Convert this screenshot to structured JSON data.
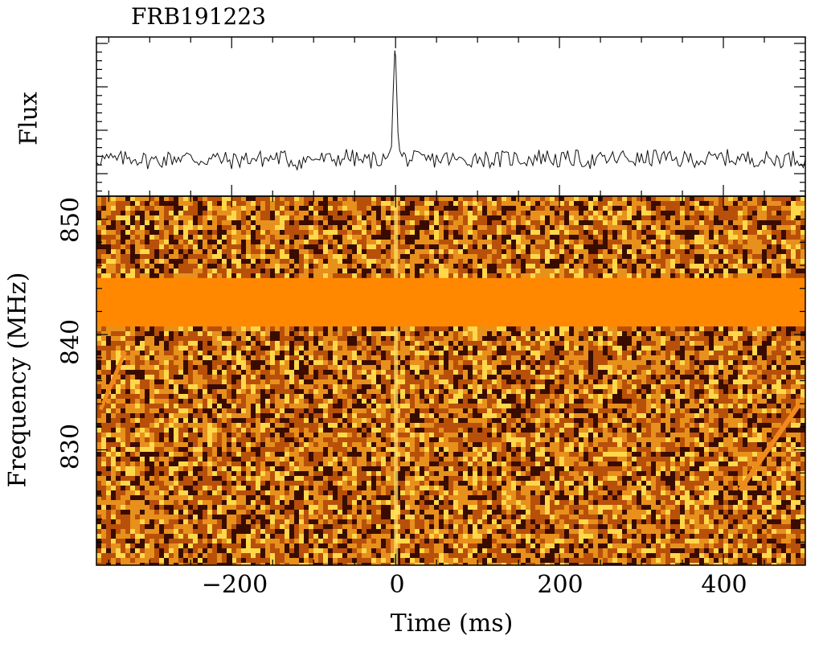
{
  "chart_data": [
    {
      "type": "line",
      "title": "FRB191223",
      "ylabel": "Flux",
      "xlim": [
        -365,
        500
      ],
      "series": [
        {
          "x": [
            -365,
            -340,
            -320,
            -300,
            -280,
            -260,
            -240,
            -220,
            -200,
            -180,
            -160,
            -140,
            -120,
            -100,
            -80,
            -60,
            -40,
            -20,
            -10,
            -5,
            -3,
            -1,
            0,
            1,
            3,
            5,
            8,
            12,
            20,
            40,
            60,
            80,
            100,
            120,
            140,
            160,
            180,
            200,
            220,
            240,
            260,
            280,
            300,
            320,
            340,
            360,
            380,
            400,
            420,
            440,
            460,
            480,
            500
          ],
          "y": [
            0.2,
            0.1,
            0.25,
            0.05,
            0.15,
            0.3,
            0.1,
            0.2,
            0.05,
            0.2,
            0.15,
            0.25,
            0.0,
            0.2,
            0.1,
            0.3,
            0.05,
            0.15,
            0.2,
            0.8,
            3.5,
            5.8,
            5.5,
            4.2,
            1.5,
            0.6,
            0.3,
            0.2,
            0.15,
            0.1,
            0.2,
            0.05,
            0.25,
            0.1,
            0.2,
            0.15,
            0.3,
            0.1,
            0.2,
            0.05,
            0.15,
            0.25,
            0.1,
            0.3,
            0.05,
            0.2,
            0.1,
            0.25,
            0.15,
            0.2,
            0.1,
            0.2,
            0.15
          ]
        }
      ]
    },
    {
      "type": "heatmap",
      "xlabel": "Time (ms)",
      "ylabel": "Frequency (MHz)",
      "xlim": [
        -365,
        500
      ],
      "ylim": [
        820,
        852
      ],
      "xticks": [
        -200,
        0,
        200,
        400
      ],
      "xtick_labels": [
        "−200",
        "0",
        "200",
        "400"
      ],
      "yticks": [
        830,
        840,
        850
      ],
      "ytick_labels": [
        "830",
        "840",
        "850"
      ],
      "burst_time_ms": 0,
      "masked_band_mhz": [
        840.7,
        844.9
      ],
      "colormap": [
        "#3a0c00",
        "#b8500a",
        "#e8901c",
        "#ffd84a"
      ]
    }
  ]
}
